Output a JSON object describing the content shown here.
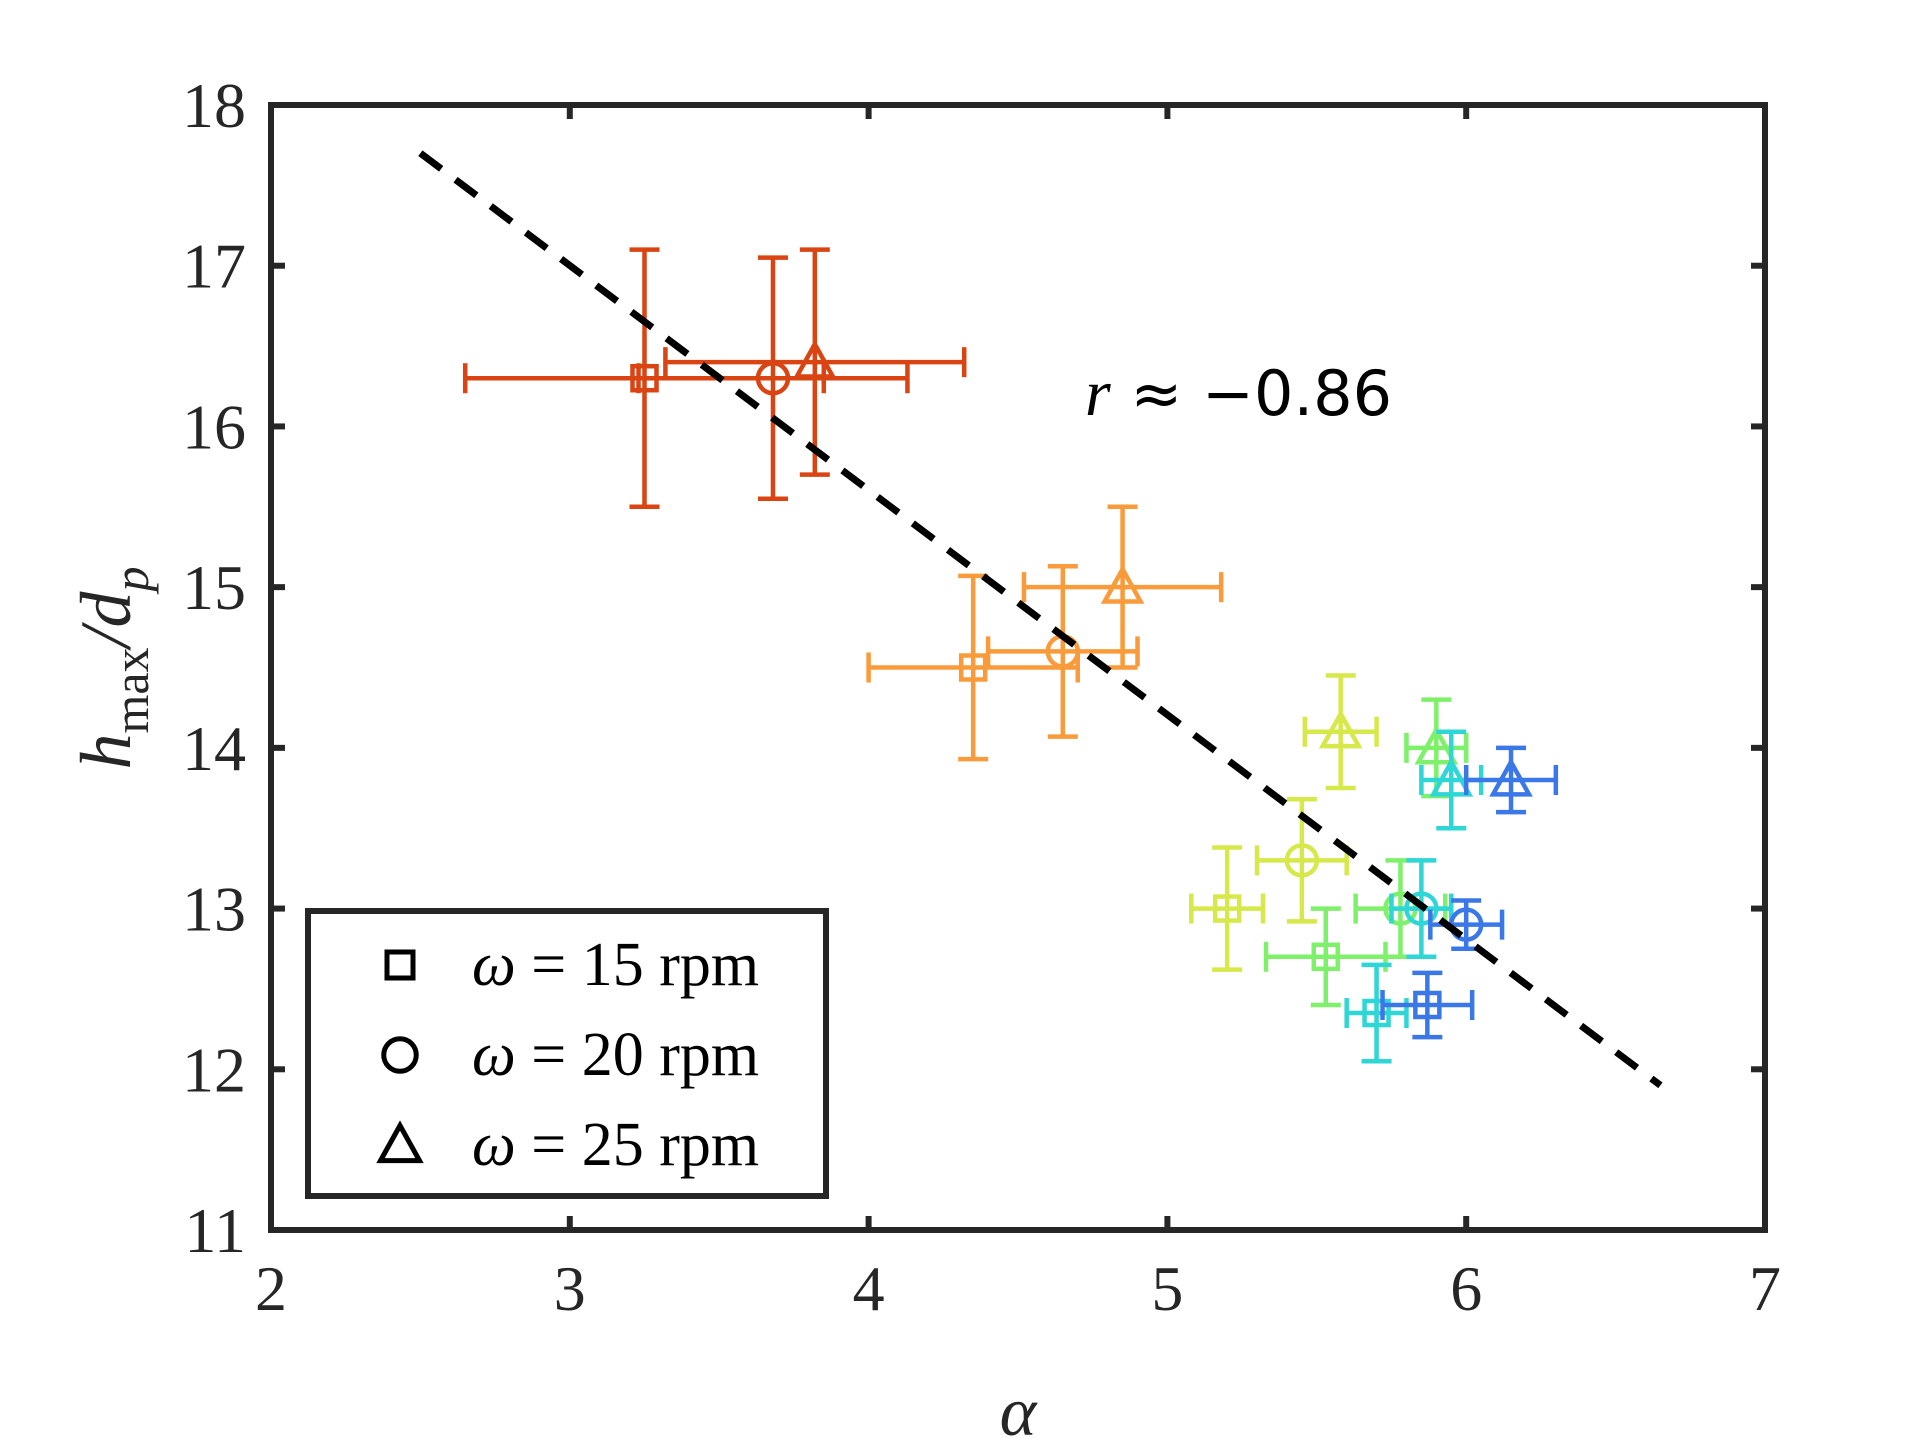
{
  "chart_data": {
    "type": "scatter",
    "title": "",
    "xlabel": "α",
    "ylabel_main": "h",
    "ylabel_sub": "max",
    "ylabel_rest": "/d",
    "ylabel_sub2": "p",
    "xlim": [
      2,
      7
    ],
    "ylim": [
      11,
      18
    ],
    "xticks": [
      "2",
      "3",
      "4",
      "5",
      "6",
      "7"
    ],
    "yticks": [
      "11",
      "12",
      "13",
      "14",
      "15",
      "16",
      "17",
      "18"
    ],
    "grid": false,
    "annotation": {
      "prefix": "r",
      "rest": " ≈ −0.86"
    },
    "fit_line": {
      "x": [
        2.5,
        6.65
      ],
      "y": [
        17.7,
        11.9
      ],
      "style": "dashed",
      "color": "#000000"
    },
    "legend": {
      "position": "bottom-left",
      "entries": [
        {
          "marker": "square",
          "omega": "ω",
          "label": " = 15 rpm"
        },
        {
          "marker": "circle",
          "omega": "ω",
          "label": " = 20 rpm"
        },
        {
          "marker": "triangle",
          "omega": "ω",
          "label": " = 25 rpm"
        }
      ]
    },
    "points": [
      {
        "x": 3.25,
        "y": 16.3,
        "xerr": 0.6,
        "yerr": 0.8,
        "marker": "square",
        "color": "#d94412"
      },
      {
        "x": 3.68,
        "y": 16.3,
        "xerr": 0.45,
        "yerr": 0.75,
        "marker": "circle",
        "color": "#d94412"
      },
      {
        "x": 3.82,
        "y": 16.4,
        "xerr": 0.5,
        "yerr": 0.7,
        "marker": "triangle",
        "color": "#d94412"
      },
      {
        "x": 4.35,
        "y": 14.5,
        "xerr": 0.35,
        "yerr": 0.57,
        "marker": "square",
        "color": "#f99b3a"
      },
      {
        "x": 4.65,
        "y": 14.6,
        "xerr": 0.25,
        "yerr": 0.53,
        "marker": "circle",
        "color": "#f99b3a"
      },
      {
        "x": 4.85,
        "y": 15.0,
        "xerr": 0.33,
        "yerr": 0.5,
        "marker": "triangle",
        "color": "#f99b3a"
      },
      {
        "x": 5.2,
        "y": 13.0,
        "xerr": 0.12,
        "yerr": 0.38,
        "marker": "square",
        "color": "#d6e84a"
      },
      {
        "x": 5.45,
        "y": 13.3,
        "xerr": 0.15,
        "yerr": 0.38,
        "marker": "circle",
        "color": "#d6e84a"
      },
      {
        "x": 5.58,
        "y": 14.1,
        "xerr": 0.12,
        "yerr": 0.35,
        "marker": "triangle",
        "color": "#d6e84a"
      },
      {
        "x": 5.53,
        "y": 12.7,
        "xerr": 0.2,
        "yerr": 0.3,
        "marker": "square",
        "color": "#7ef06a"
      },
      {
        "x": 5.78,
        "y": 13.0,
        "xerr": 0.15,
        "yerr": 0.3,
        "marker": "circle",
        "color": "#7ef06a"
      },
      {
        "x": 5.9,
        "y": 14.0,
        "xerr": 0.1,
        "yerr": 0.3,
        "marker": "triangle",
        "color": "#7ef06a"
      },
      {
        "x": 5.7,
        "y": 12.35,
        "xerr": 0.1,
        "yerr": 0.3,
        "marker": "square",
        "color": "#2ed6d6"
      },
      {
        "x": 5.85,
        "y": 13.0,
        "xerr": 0.1,
        "yerr": 0.3,
        "marker": "circle",
        "color": "#2ed6d6"
      },
      {
        "x": 5.95,
        "y": 13.8,
        "xerr": 0.1,
        "yerr": 0.3,
        "marker": "triangle",
        "color": "#2ed6d6"
      },
      {
        "x": 5.87,
        "y": 12.4,
        "xerr": 0.15,
        "yerr": 0.2,
        "marker": "square",
        "color": "#3b78e7"
      },
      {
        "x": 6.0,
        "y": 12.9,
        "xerr": 0.12,
        "yerr": 0.15,
        "marker": "circle",
        "color": "#3b78e7"
      },
      {
        "x": 6.15,
        "y": 13.8,
        "xerr": 0.15,
        "yerr": 0.2,
        "marker": "triangle",
        "color": "#3b78e7"
      }
    ]
  }
}
